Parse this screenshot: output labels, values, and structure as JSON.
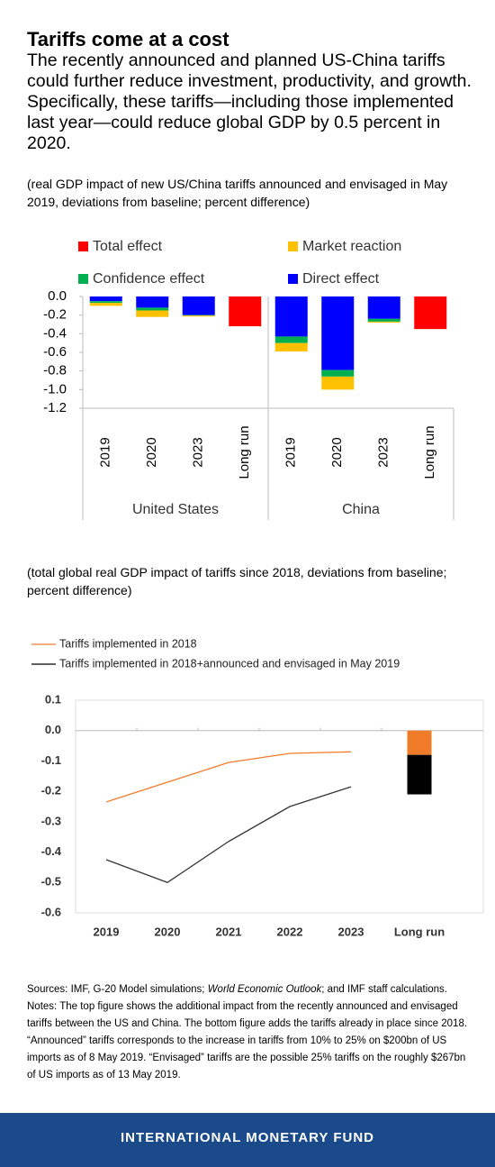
{
  "header": {
    "title": "Tariffs come at a cost",
    "subtitle": "The recently announced and planned US-China tariffs could further reduce investment, productivity, and growth. Specifically, these tariffs—including those implemented last year—could reduce global GDP by 0.5 percent in 2020."
  },
  "chart_data": [
    {
      "type": "bar",
      "stacked": true,
      "subtitle": "(real GDP impact of new US/China tariffs announced and envisaged in May 2019, deviations from baseline; percent difference)",
      "groups": [
        {
          "name": "United States",
          "categories": [
            "2019",
            "2020",
            "2023",
            "Long run"
          ]
        },
        {
          "name": "China",
          "categories": [
            "2019",
            "2020",
            "2023",
            "Long run"
          ]
        }
      ],
      "series": [
        {
          "name": "Total effect",
          "color": "#ff0000",
          "values": [
            null,
            null,
            null,
            -0.32,
            null,
            null,
            null,
            -0.35
          ]
        },
        {
          "name": "Market reaction",
          "color": "#ffc000",
          "values": [
            -0.03,
            -0.07,
            -0.01,
            null,
            -0.09,
            -0.14,
            -0.01,
            null
          ]
        },
        {
          "name": "Confidence effect",
          "color": "#00b050",
          "values": [
            -0.02,
            -0.03,
            -0.005,
            null,
            -0.07,
            -0.07,
            -0.03,
            null
          ]
        },
        {
          "name": "Direct effect",
          "color": "#0000ff",
          "values": [
            -0.05,
            -0.12,
            -0.2,
            null,
            -0.43,
            -0.79,
            -0.24,
            null
          ]
        }
      ],
      "ylim": [
        -1.2,
        0
      ],
      "yticks": [
        {
          "value": 0,
          "label": "0.0"
        },
        -0.2,
        -0.4,
        -0.6,
        -0.8,
        {
          "value": -1,
          "label": "-1.0"
        },
        -1.2
      ]
    },
    {
      "type": "line",
      "subtitle": "(total global real GDP impact of tariffs since 2018, deviations from baseline; percent difference)",
      "categories": [
        "2019",
        "2020",
        "2021",
        "2022",
        "2023",
        "Long run"
      ],
      "series": [
        {
          "name": "Tariffs implemented in 2018",
          "color": "#f07c2a",
          "values": [
            -0.235,
            -0.17,
            -0.105,
            -0.075,
            -0.07,
            null
          ],
          "bar_values": [
            null,
            null,
            null,
            null,
            null,
            -0.08
          ]
        },
        {
          "name": "Tariffs implemented in 2018+announced and envisaged in May 2019",
          "color": "#000000",
          "values": [
            -0.425,
            -0.5,
            -0.365,
            -0.25,
            -0.185,
            null
          ],
          "bar_values": [
            null,
            null,
            null,
            null,
            null,
            -0.13
          ]
        }
      ],
      "ylim": [
        -0.6,
        0.1
      ],
      "yticks": [
        0.1,
        {
          "value": 0,
          "label": "0.0"
        },
        -0.1,
        -0.2,
        -0.3,
        -0.4,
        -0.5,
        -0.6
      ]
    }
  ],
  "notes": {
    "sources": [
      "Sources: IMF, G-20 Model simulations; ",
      "World Economic Outlook",
      "; and IMF staff calculations."
    ],
    "text": "Notes: The top figure shows the additional impact from the recently announced and envisaged tariffs between the US and China. The bottom figure adds the tariffs already in place since 2018. “Announced” tariffs corresponds to the increase in tariffs from 10% to 25% on $200bn of US imports as of 8 May 2019. “Envisaged” tariffs are the possible 25% tariffs on the roughly $267bn of US imports as of 13 May 2019."
  },
  "footer": "INTERNATIONAL MONETARY FUND"
}
